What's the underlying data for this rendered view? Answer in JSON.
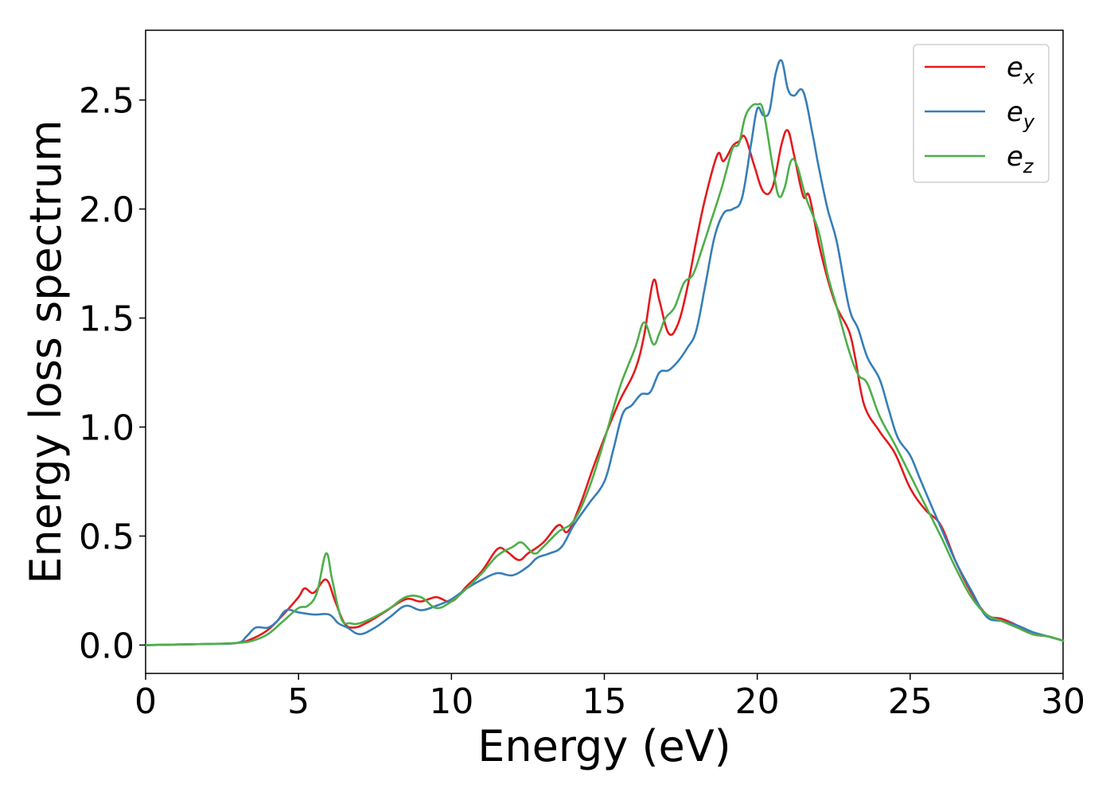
{
  "chart_data": {
    "type": "line",
    "title": "",
    "xlabel": "Energy (eV)",
    "ylabel": "Energy loss spectrum",
    "xlim": [
      0,
      30
    ],
    "ylim": [
      -0.13,
      2.82
    ],
    "xticks": [
      0,
      5,
      10,
      15,
      20,
      25,
      30
    ],
    "xtick_labels": [
      "0",
      "5",
      "10",
      "15",
      "20",
      "25",
      "30"
    ],
    "yticks": [
      0.0,
      0.5,
      1.0,
      1.5,
      2.0,
      2.5
    ],
    "ytick_labels": [
      "0.0",
      "0.5",
      "1.0",
      "1.5",
      "2.0",
      "2.5"
    ],
    "grid": false,
    "legend_position": "top-right",
    "series": [
      {
        "name": "e_x",
        "legend_base": "e",
        "legend_sub": "x",
        "color": "#e41a1c",
        "x": [
          0,
          2,
          3,
          3.5,
          4,
          4.5,
          5.0,
          5.2,
          5.5,
          5.9,
          6.2,
          6.5,
          6.8,
          7.2,
          7.8,
          8.5,
          9.0,
          9.5,
          10.0,
          10.5,
          11.0,
          11.5,
          11.8,
          12.2,
          12.5,
          13.0,
          13.5,
          13.8,
          14.2,
          14.6,
          15.0,
          15.5,
          16.0,
          16.3,
          16.6,
          16.8,
          17.1,
          17.4,
          17.7,
          18.0,
          18.3,
          18.7,
          18.9,
          19.2,
          19.4,
          19.6,
          19.9,
          20.2,
          20.5,
          20.8,
          21.0,
          21.2,
          21.5,
          21.7,
          22.0,
          22.3,
          22.6,
          23.0,
          23.2,
          23.5,
          24.0,
          24.5,
          25.0,
          25.5,
          26.0,
          26.5,
          27.0,
          27.5,
          28.0,
          28.5,
          29.0,
          29.5,
          30.0
        ],
        "y": [
          0.0,
          0.005,
          0.01,
          0.03,
          0.07,
          0.14,
          0.22,
          0.26,
          0.24,
          0.3,
          0.2,
          0.1,
          0.08,
          0.1,
          0.15,
          0.21,
          0.2,
          0.22,
          0.2,
          0.27,
          0.34,
          0.44,
          0.43,
          0.39,
          0.42,
          0.47,
          0.55,
          0.52,
          0.64,
          0.8,
          0.95,
          1.12,
          1.26,
          1.42,
          1.67,
          1.58,
          1.43,
          1.47,
          1.63,
          1.85,
          2.05,
          2.25,
          2.22,
          2.29,
          2.31,
          2.33,
          2.2,
          2.08,
          2.1,
          2.3,
          2.36,
          2.25,
          2.06,
          2.06,
          1.85,
          1.68,
          1.55,
          1.44,
          1.32,
          1.1,
          0.98,
          0.88,
          0.72,
          0.62,
          0.55,
          0.38,
          0.24,
          0.14,
          0.12,
          0.09,
          0.05,
          0.04,
          0.02
        ]
      },
      {
        "name": "e_y",
        "legend_base": "e",
        "legend_sub": "y",
        "color": "#377eb8",
        "x": [
          0,
          2,
          3,
          3.3,
          3.6,
          4.0,
          4.3,
          4.6,
          5.0,
          5.5,
          6.0,
          6.3,
          6.6,
          7.0,
          7.5,
          8.0,
          8.5,
          9.0,
          9.5,
          10.0,
          10.5,
          11.0,
          11.5,
          12.0,
          12.5,
          12.8,
          13.2,
          13.6,
          14.0,
          14.5,
          15.0,
          15.3,
          15.6,
          15.9,
          16.2,
          16.5,
          16.8,
          17.1,
          17.4,
          17.7,
          18.0,
          18.3,
          18.6,
          18.9,
          19.2,
          19.5,
          19.8,
          20.0,
          20.2,
          20.4,
          20.6,
          20.8,
          21.0,
          21.2,
          21.5,
          21.8,
          22.0,
          22.3,
          22.6,
          23.0,
          23.3,
          23.6,
          24.0,
          24.3,
          24.6,
          25.0,
          25.3,
          25.6,
          26.0,
          26.5,
          27.0,
          27.5,
          28.0,
          28.5,
          29.0,
          29.5,
          30.0
        ],
        "y": [
          0.0,
          0.005,
          0.01,
          0.04,
          0.08,
          0.08,
          0.11,
          0.16,
          0.15,
          0.14,
          0.14,
          0.1,
          0.08,
          0.05,
          0.08,
          0.13,
          0.18,
          0.16,
          0.18,
          0.21,
          0.26,
          0.3,
          0.33,
          0.32,
          0.36,
          0.4,
          0.42,
          0.45,
          0.55,
          0.65,
          0.75,
          0.9,
          1.06,
          1.1,
          1.15,
          1.16,
          1.25,
          1.26,
          1.3,
          1.36,
          1.44,
          1.65,
          1.87,
          1.98,
          2.0,
          2.05,
          2.3,
          2.46,
          2.43,
          2.45,
          2.62,
          2.68,
          2.55,
          2.52,
          2.54,
          2.35,
          2.2,
          2.0,
          1.85,
          1.55,
          1.45,
          1.32,
          1.22,
          1.08,
          0.95,
          0.87,
          0.77,
          0.67,
          0.54,
          0.38,
          0.25,
          0.13,
          0.11,
          0.09,
          0.06,
          0.04,
          0.02
        ]
      },
      {
        "name": "e_z",
        "legend_base": "e",
        "legend_sub": "z",
        "color": "#4daf4a",
        "x": [
          0,
          2,
          3,
          3.5,
          4,
          4.5,
          5.0,
          5.3,
          5.6,
          5.9,
          6.1,
          6.4,
          6.7,
          7.0,
          7.5,
          8.0,
          8.5,
          9.0,
          9.5,
          10.0,
          10.5,
          11.0,
          11.5,
          12.0,
          12.3,
          12.7,
          13.0,
          13.5,
          14.0,
          14.5,
          15.0,
          15.5,
          16.0,
          16.3,
          16.6,
          16.8,
          17.0,
          17.3,
          17.6,
          17.9,
          18.2,
          18.5,
          18.8,
          19.0,
          19.2,
          19.4,
          19.6,
          19.8,
          20.0,
          20.2,
          20.5,
          20.7,
          20.9,
          21.1,
          21.3,
          21.6,
          22.0,
          22.3,
          22.6,
          23.0,
          23.3,
          23.6,
          24.0,
          24.5,
          25.0,
          25.5,
          26.0,
          26.5,
          27.0,
          27.5,
          28.0,
          28.5,
          29.0,
          29.5,
          30.0
        ],
        "y": [
          0.0,
          0.005,
          0.01,
          0.02,
          0.05,
          0.11,
          0.17,
          0.18,
          0.24,
          0.42,
          0.3,
          0.12,
          0.1,
          0.1,
          0.13,
          0.17,
          0.22,
          0.22,
          0.17,
          0.2,
          0.26,
          0.33,
          0.41,
          0.45,
          0.47,
          0.42,
          0.45,
          0.52,
          0.57,
          0.72,
          0.94,
          1.18,
          1.36,
          1.48,
          1.38,
          1.43,
          1.5,
          1.55,
          1.66,
          1.7,
          1.82,
          1.95,
          2.08,
          2.18,
          2.28,
          2.3,
          2.42,
          2.47,
          2.48,
          2.45,
          2.2,
          2.06,
          2.1,
          2.22,
          2.2,
          2.05,
          1.9,
          1.7,
          1.55,
          1.35,
          1.24,
          1.2,
          1.05,
          0.92,
          0.78,
          0.64,
          0.5,
          0.35,
          0.22,
          0.14,
          0.11,
          0.08,
          0.05,
          0.04,
          0.02
        ]
      }
    ]
  }
}
